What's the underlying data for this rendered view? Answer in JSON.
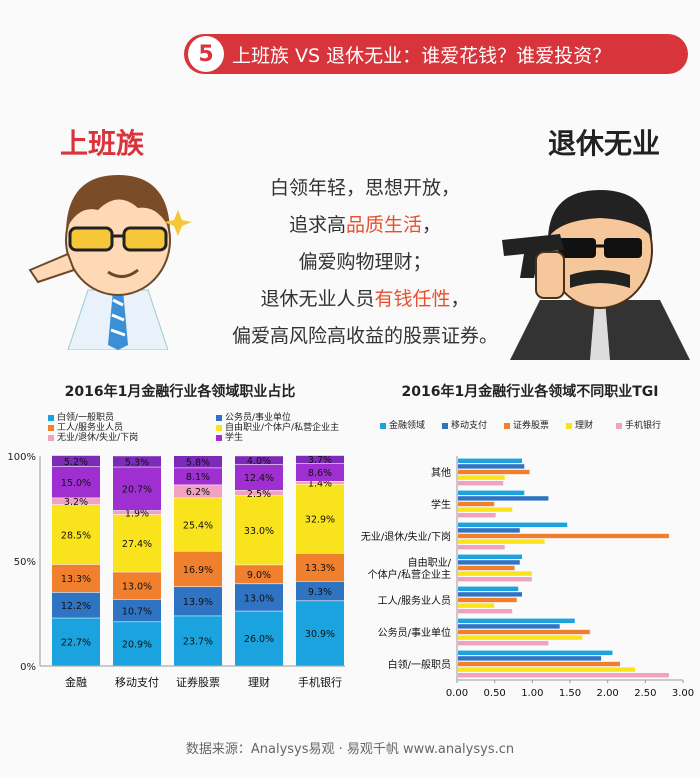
{
  "banner": {
    "number": "5",
    "title": "上班族 VS 退休无业：谁爱花钱？谁爱投资？"
  },
  "labels": {
    "left": "上班族",
    "right": "退休无业"
  },
  "slogan": {
    "line1": "白领年轻，思想开放，",
    "line2_pre": "追求高",
    "line2_hl": "品质生活",
    "line2_post": "，",
    "line3": "偏爱购物理财；",
    "line4_pre": "退休无业人员",
    "line4_hl": "有钱任性",
    "line4_post": "，",
    "line5": "偏爱高风险高收益的股票证券。"
  },
  "colors": {
    "accent": "#d8343c",
    "highlight": "#e8502d"
  },
  "chart_data": [
    {
      "type": "bar",
      "stacked": true,
      "title": "2016年1月金融行业各领域职业占比",
      "categories": [
        "金融",
        "移动支付",
        "证券股票",
        "理财",
        "手机银行"
      ],
      "y_ticks": [
        "0%",
        "50%",
        "100%"
      ],
      "ylim": [
        0,
        100
      ],
      "series": [
        {
          "name": "白领/一般职员",
          "color": "#1aa3de",
          "values": [
            22.7,
            20.9,
            23.7,
            26.0,
            30.9
          ],
          "labels": [
            "22.7%",
            "20.9%",
            "23.7%",
            "26.0%",
            "30.9%"
          ]
        },
        {
          "name": "公务员/事业单位",
          "color": "#2e74c2",
          "values": [
            12.2,
            10.7,
            13.9,
            13.0,
            9.3
          ],
          "labels": [
            "12.2%",
            "10.7%",
            "13.9%",
            "13.0%",
            "9.3%"
          ]
        },
        {
          "name": "工人/服务业人员",
          "color": "#f07f2e",
          "values": [
            13.3,
            13.0,
            16.9,
            9.0,
            13.3
          ],
          "labels": [
            "13.3%",
            "13.0%",
            "16.9%",
            "9.0%",
            "13.3%"
          ]
        },
        {
          "name": "自由职业/个体户/私营企业主",
          "color": "#f9e31c",
          "values": [
            28.5,
            27.4,
            25.4,
            33.0,
            32.9
          ],
          "labels": [
            "28.5%",
            "27.4%",
            "25.4%",
            "33.0%",
            "32.9%"
          ]
        },
        {
          "name": "无业/退休/失业/下岗",
          "color": "#f2a1c1",
          "values": [
            3.2,
            1.9,
            6.2,
            2.5,
            1.4
          ],
          "labels": [
            "3.2%",
            "1.9%",
            "6.2%",
            "2.5%",
            "1.4%"
          ]
        },
        {
          "name": "学生",
          "color": "#a02fd1",
          "values": [
            15.0,
            20.7,
            8.1,
            12.4,
            8.6
          ],
          "labels": [
            "15.0%",
            "20.7%",
            "8.1%",
            "12.4%",
            "8.6%"
          ]
        },
        {
          "name": "",
          "color": "#7c2ab8",
          "values": [
            5.2,
            5.3,
            5.8,
            4.0,
            3.7
          ],
          "labels": [
            "5.2%",
            "5.3%",
            "5.8%",
            "4.0%",
            "3.7%"
          ]
        }
      ]
    },
    {
      "type": "bar",
      "orientation": "horizontal",
      "title": "2016年1月金融行业各领域不同职业TGI",
      "categories": [
        "其他",
        "学生",
        "无业/退休/失业/下岗",
        "自由职业/\n个体户/私营企业主",
        "工人/服务业人员",
        "公务员/事业单位",
        "白领/一般职员"
      ],
      "x_ticks": [
        "0.00",
        "0.50",
        "1.00",
        "1.50",
        "2.00",
        "2.50",
        "3.00"
      ],
      "xlim": [
        0,
        3
      ],
      "series": [
        {
          "name": "金融领域",
          "color": "#1aa3de",
          "values": [
            0.85,
            0.88,
            1.45,
            0.85,
            0.8,
            1.55,
            2.05
          ]
        },
        {
          "name": "移动支付",
          "color": "#2e74c2",
          "values": [
            0.88,
            1.2,
            0.82,
            0.82,
            0.85,
            1.35,
            1.9
          ]
        },
        {
          "name": "证券股票",
          "color": "#f07f2e",
          "values": [
            0.95,
            0.48,
            2.8,
            0.75,
            0.78,
            1.75,
            2.15
          ]
        },
        {
          "name": "理财",
          "color": "#f9e31c",
          "values": [
            0.62,
            0.72,
            1.15,
            0.98,
            0.48,
            1.65,
            2.35
          ]
        },
        {
          "name": "手机银行",
          "color": "#f2a1c1",
          "values": [
            0.6,
            0.5,
            0.62,
            0.98,
            0.72,
            1.2,
            2.8
          ]
        }
      ]
    }
  ],
  "footer": "数据来源：Analysys易观 · 易观千帆  www.analysys.cn"
}
